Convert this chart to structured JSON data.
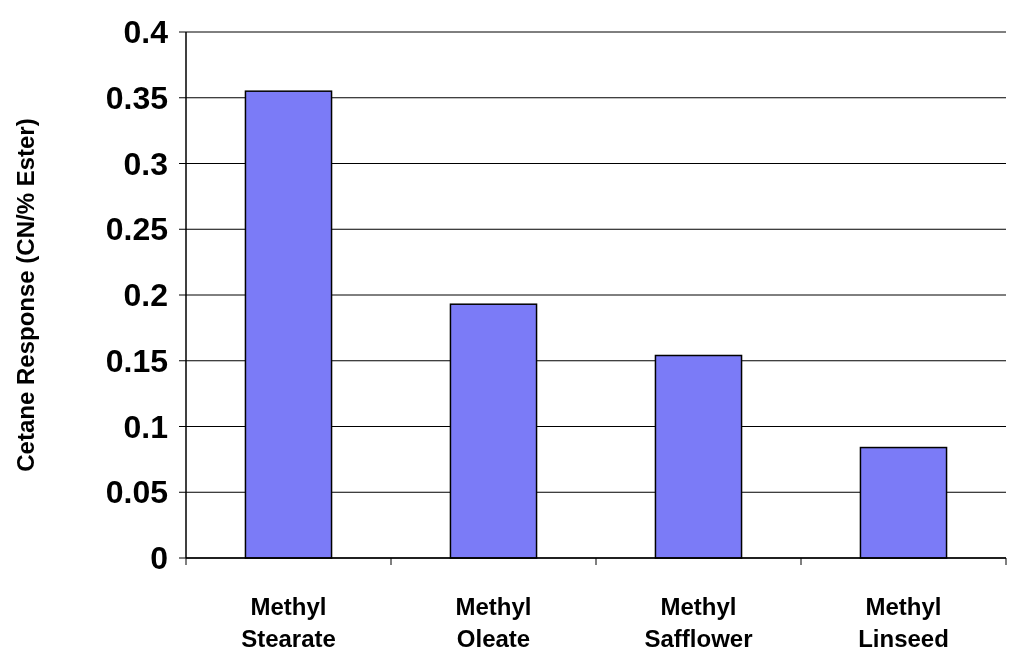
{
  "chart_data": {
    "type": "bar",
    "ylabel": "Cetane Response (CN/% Ester)",
    "categories": [
      "Methyl\nStearate",
      "Methyl\nOleate",
      "Methyl\nSafflower",
      "Methyl\nLinseed"
    ],
    "values": [
      0.355,
      0.193,
      0.154,
      0.084
    ],
    "color": "#7b7bf7",
    "ylim": [
      0,
      0.4
    ],
    "yticks": [
      0,
      0.05,
      0.1,
      0.15,
      0.2,
      0.25,
      0.3,
      0.35,
      0.4
    ],
    "grid": "y"
  }
}
